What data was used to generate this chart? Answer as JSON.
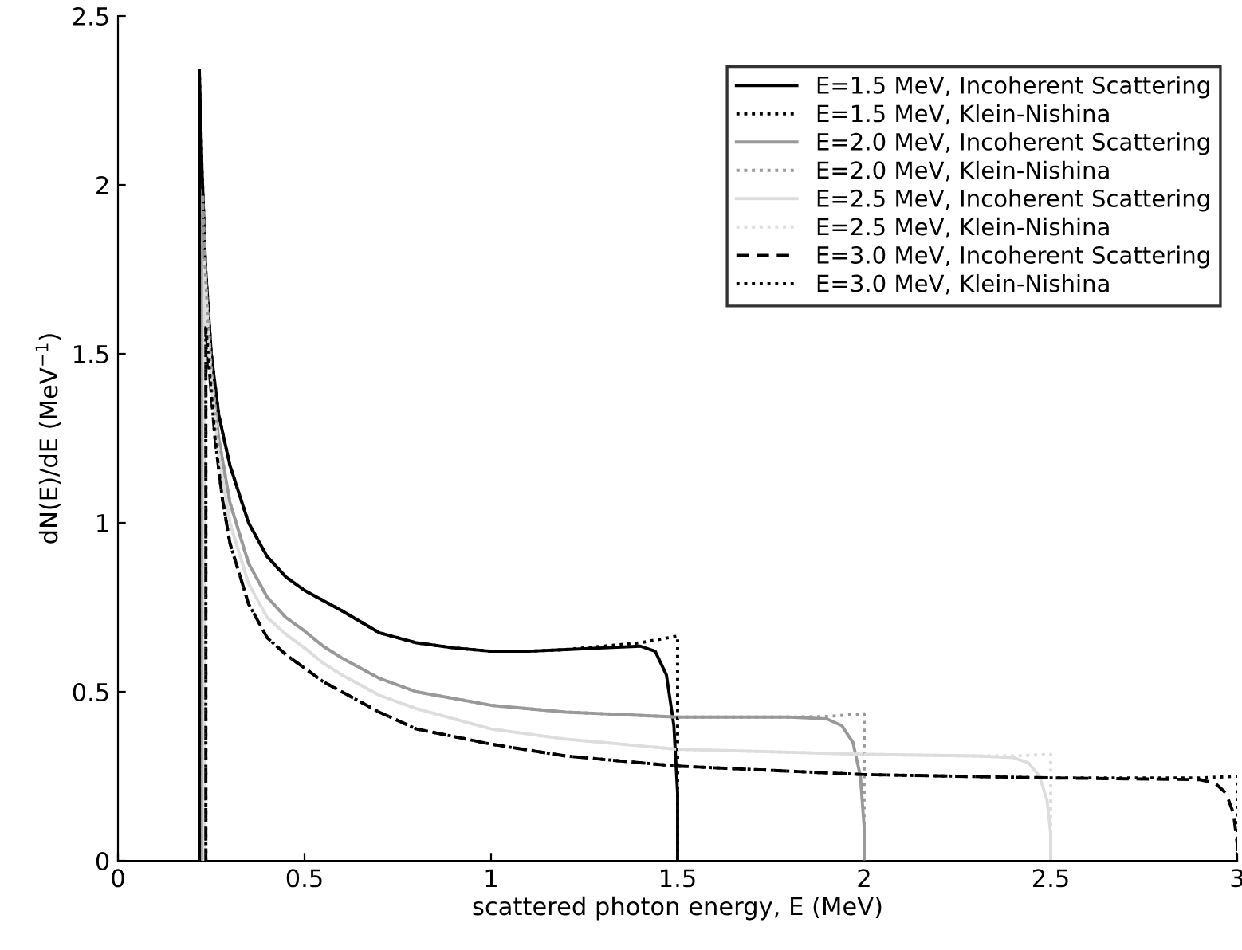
{
  "chart_data": {
    "type": "line",
    "xlabel": "scattered photon energy, E (MeV)",
    "ylabel": "dN(E)/dE (MeV$^{−1}$)",
    "xlim": [
      0,
      3
    ],
    "ylim": [
      0,
      2.5
    ],
    "xticks": [
      0,
      0.5,
      1,
      1.5,
      2,
      2.5,
      3
    ],
    "yticks": [
      0,
      0.5,
      1,
      1.5,
      2,
      2.5
    ],
    "grid": false,
    "legend": "top right",
    "marker": "none",
    "series": [
      {
        "name": "E=1.5 MeV, Incoherent Scattering",
        "color": "#000000",
        "line_style": "solid",
        "x": [
          0.218,
          0.218,
          0.225,
          0.235,
          0.25,
          0.27,
          0.3,
          0.35,
          0.4,
          0.45,
          0.5,
          0.55,
          0.6,
          0.7,
          0.8,
          0.9,
          1.0,
          1.1,
          1.2,
          1.3,
          1.4,
          1.44,
          1.47,
          1.49,
          1.5,
          1.5
        ],
        "values": [
          0,
          2.34,
          2.05,
          1.75,
          1.5,
          1.32,
          1.17,
          1.0,
          0.9,
          0.84,
          0.8,
          0.77,
          0.74,
          0.675,
          0.645,
          0.63,
          0.62,
          0.62,
          0.625,
          0.63,
          0.635,
          0.62,
          0.55,
          0.4,
          0.2,
          0
        ]
      },
      {
        "name": "E=1.5 MeV, Klein-Nishina",
        "color": "#000000",
        "line_style": "dotted",
        "x": [
          0.218,
          0.218,
          0.225,
          0.235,
          0.25,
          0.27,
          0.3,
          0.35,
          0.4,
          0.45,
          0.5,
          0.55,
          0.6,
          0.7,
          0.8,
          0.9,
          1.0,
          1.1,
          1.2,
          1.3,
          1.4,
          1.5,
          1.5
        ],
        "values": [
          0,
          2.34,
          2.05,
          1.75,
          1.5,
          1.32,
          1.17,
          1.0,
          0.9,
          0.84,
          0.8,
          0.77,
          0.74,
          0.675,
          0.645,
          0.63,
          0.62,
          0.62,
          0.625,
          0.635,
          0.645,
          0.665,
          0
        ]
      },
      {
        "name": "E=2.0 MeV, Incoherent Scattering",
        "color": "#999999",
        "line_style": "solid",
        "x": [
          0.2265,
          0.2265,
          0.235,
          0.25,
          0.27,
          0.3,
          0.35,
          0.4,
          0.45,
          0.5,
          0.55,
          0.6,
          0.7,
          0.8,
          1.0,
          1.2,
          1.5,
          1.8,
          1.9,
          1.94,
          1.97,
          1.99,
          2.0,
          2.0
        ],
        "values": [
          0,
          1.97,
          1.72,
          1.45,
          1.25,
          1.06,
          0.88,
          0.78,
          0.72,
          0.68,
          0.635,
          0.6,
          0.54,
          0.5,
          0.46,
          0.44,
          0.425,
          0.425,
          0.42,
          0.4,
          0.35,
          0.25,
          0.1,
          0
        ]
      },
      {
        "name": "E=2.0 MeV, Klein-Nishina",
        "color": "#999999",
        "line_style": "dotted",
        "x": [
          0.2265,
          0.2265,
          0.235,
          0.25,
          0.27,
          0.3,
          0.35,
          0.4,
          0.45,
          0.5,
          0.55,
          0.6,
          0.7,
          0.8,
          1.0,
          1.2,
          1.5,
          1.8,
          1.9,
          2.0,
          2.0
        ],
        "values": [
          0,
          1.97,
          1.72,
          1.45,
          1.25,
          1.06,
          0.88,
          0.78,
          0.72,
          0.68,
          0.635,
          0.6,
          0.54,
          0.5,
          0.46,
          0.44,
          0.425,
          0.425,
          0.427,
          0.435,
          0
        ]
      },
      {
        "name": "E=2.5 MeV, Incoherent Scattering",
        "color": "#dddddd",
        "line_style": "solid",
        "x": [
          0.232,
          0.232,
          0.24,
          0.25,
          0.27,
          0.3,
          0.35,
          0.4,
          0.45,
          0.5,
          0.55,
          0.6,
          0.7,
          0.8,
          1.0,
          1.2,
          1.5,
          2.0,
          2.3,
          2.4,
          2.44,
          2.47,
          2.49,
          2.5,
          2.5
        ],
        "values": [
          0,
          1.78,
          1.6,
          1.42,
          1.2,
          1.0,
          0.82,
          0.72,
          0.67,
          0.63,
          0.585,
          0.55,
          0.49,
          0.45,
          0.39,
          0.36,
          0.33,
          0.315,
          0.31,
          0.305,
          0.29,
          0.25,
          0.18,
          0.08,
          0
        ]
      },
      {
        "name": "E=2.5 MeV, Klein-Nishina",
        "color": "#dddddd",
        "line_style": "dotted",
        "x": [
          0.232,
          0.232,
          0.24,
          0.25,
          0.27,
          0.3,
          0.35,
          0.4,
          0.45,
          0.5,
          0.55,
          0.6,
          0.7,
          0.8,
          1.0,
          1.2,
          1.5,
          2.0,
          2.3,
          2.4,
          2.5,
          2.5
        ],
        "values": [
          0,
          1.78,
          1.6,
          1.42,
          1.2,
          1.0,
          0.82,
          0.72,
          0.67,
          0.63,
          0.585,
          0.55,
          0.49,
          0.45,
          0.39,
          0.36,
          0.33,
          0.315,
          0.31,
          0.31,
          0.315,
          0
        ]
      },
      {
        "name": "E=3.0 MeV, Incoherent Scattering",
        "color": "#000000",
        "line_style": "dashed",
        "x": [
          0.2355,
          0.2355,
          0.245,
          0.26,
          0.28,
          0.3,
          0.35,
          0.4,
          0.45,
          0.5,
          0.55,
          0.6,
          0.7,
          0.8,
          1.0,
          1.2,
          1.5,
          2.0,
          2.5,
          2.9,
          2.94,
          2.97,
          2.99,
          3.0,
          3.0
        ],
        "values": [
          0,
          1.58,
          1.45,
          1.25,
          1.07,
          0.94,
          0.76,
          0.66,
          0.61,
          0.57,
          0.53,
          0.5,
          0.44,
          0.39,
          0.345,
          0.31,
          0.28,
          0.255,
          0.245,
          0.24,
          0.23,
          0.2,
          0.14,
          0.05,
          0
        ]
      },
      {
        "name": "E=3.0 MeV, Klein-Nishina",
        "color": "#000000",
        "line_style": "dotted",
        "x": [
          0.2355,
          0.2355,
          0.245,
          0.26,
          0.28,
          0.3,
          0.35,
          0.4,
          0.45,
          0.5,
          0.55,
          0.6,
          0.7,
          0.8,
          1.0,
          1.2,
          1.5,
          2.0,
          2.5,
          2.9,
          3.0,
          3.0
        ],
        "values": [
          0,
          1.58,
          1.45,
          1.25,
          1.07,
          0.94,
          0.76,
          0.66,
          0.61,
          0.57,
          0.53,
          0.5,
          0.44,
          0.39,
          0.345,
          0.31,
          0.28,
          0.255,
          0.245,
          0.245,
          0.25,
          0
        ]
      }
    ]
  }
}
